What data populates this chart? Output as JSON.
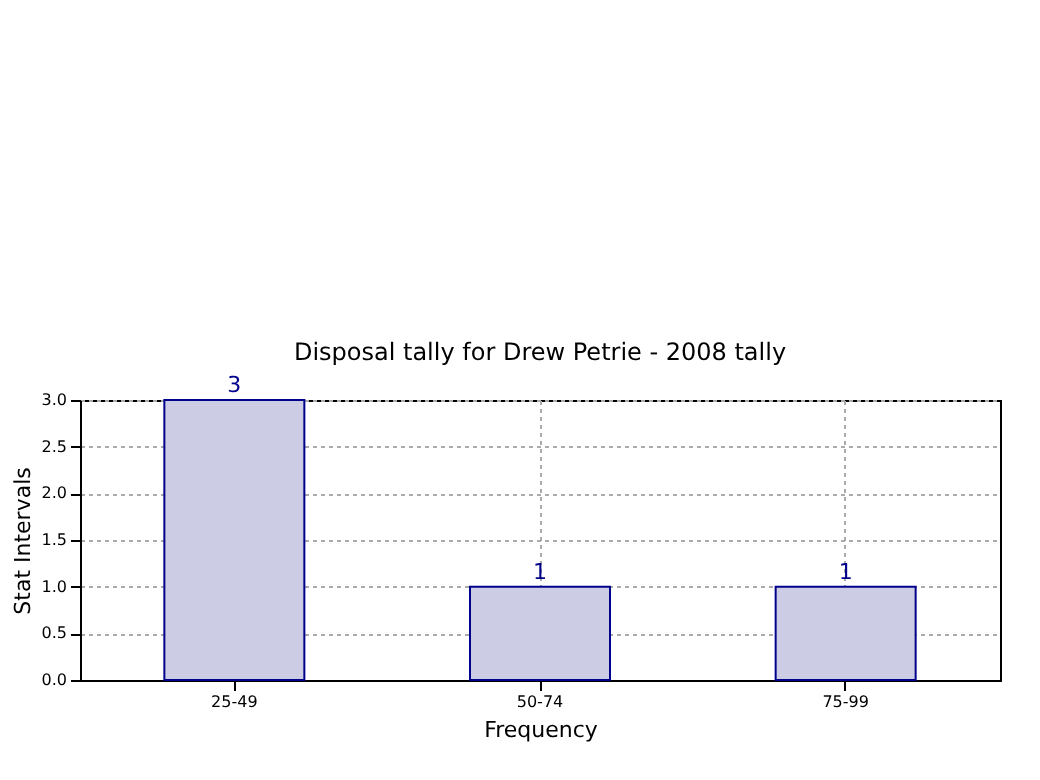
{
  "chart_data": {
    "type": "bar",
    "title": "Disposal tally for Drew Petrie - 2008 tally",
    "xlabel": "Frequency",
    "ylabel": "Stat Intervals",
    "categories": [
      "25-49",
      "50-74",
      "75-99"
    ],
    "series": [
      {
        "color": "#ccccE5",
        "values": [
          3,
          1,
          1
        ]
      }
    ],
    "data_labels": true,
    "ylim": [
      0,
      3
    ],
    "yticks": [
      {
        "value": 0,
        "label": "0.0"
      },
      0.5,
      {
        "value": 1,
        "label": "1.0"
      },
      1.5,
      {
        "value": 2,
        "label": "2.0"
      },
      2.5,
      {
        "value": 3,
        "label": "3.0"
      }
    ],
    "grid": true
  }
}
